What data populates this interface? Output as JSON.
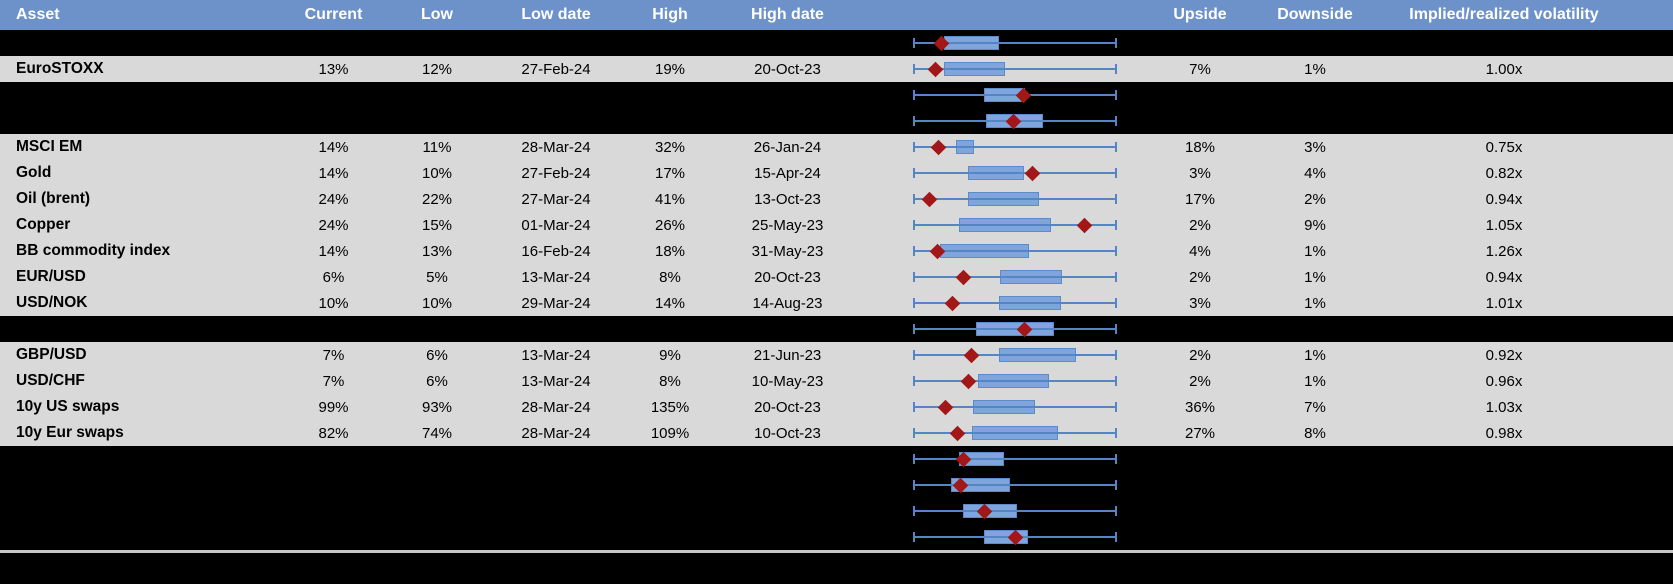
{
  "colors": {
    "header_bg": "#6C92C9",
    "row_bg": "#D9D9D9",
    "hidden_row_bg": "#000000",
    "header_text": "#FFFFFF",
    "data_text": "#000000",
    "whisker": "#5486C5",
    "box_fill": "#80A5DC",
    "box_border": "#5B8BC8",
    "diamond": "#A21717",
    "separator": "#C8C8C8",
    "footer_bg": "#000000"
  },
  "header": {
    "asset": "Asset",
    "current": "Current",
    "low": "Low",
    "low_date": "Low date",
    "high": "High",
    "high_date": "High date",
    "upside": "Upside",
    "downside": "Downside",
    "implied": "Implied/realized volatility"
  },
  "rows": [
    {
      "type": "hidden"
    },
    {
      "type": "data",
      "asset": "EuroSTOXX",
      "current": "13%",
      "low": "12%",
      "low_date": "27-Feb-24",
      "high": "19%",
      "high_date": "20-Oct-23",
      "upside": "7%",
      "downside": "1%",
      "implied_realized": "1.00x"
    },
    {
      "type": "hidden"
    },
    {
      "type": "hidden"
    },
    {
      "type": "data",
      "asset": "MSCI EM",
      "current": "14%",
      "low": "11%",
      "low_date": "28-Mar-24",
      "high": "32%",
      "high_date": "26-Jan-24",
      "upside": "18%",
      "downside": "3%",
      "implied_realized": "0.75x"
    },
    {
      "type": "data",
      "asset": "Gold",
      "current": "14%",
      "low": "10%",
      "low_date": "27-Feb-24",
      "high": "17%",
      "high_date": "15-Apr-24",
      "upside": "3%",
      "downside": "4%",
      "implied_realized": "0.82x"
    },
    {
      "type": "data",
      "asset": "Oil (brent)",
      "current": "24%",
      "low": "22%",
      "low_date": "27-Mar-24",
      "high": "41%",
      "high_date": "13-Oct-23",
      "upside": "17%",
      "downside": "2%",
      "implied_realized": "0.94x"
    },
    {
      "type": "data",
      "asset": "Copper",
      "current": "24%",
      "low": "15%",
      "low_date": "01-Mar-24",
      "high": "26%",
      "high_date": "25-May-23",
      "upside": "2%",
      "downside": "9%",
      "implied_realized": "1.05x"
    },
    {
      "type": "data",
      "asset": "BB commodity index",
      "current": "14%",
      "low": "13%",
      "low_date": "16-Feb-24",
      "high": "18%",
      "high_date": "31-May-23",
      "upside": "4%",
      "downside": "1%",
      "implied_realized": "1.26x"
    },
    {
      "type": "data",
      "asset": "EUR/USD",
      "current": "6%",
      "low": "5%",
      "low_date": "13-Mar-24",
      "high": "8%",
      "high_date": "20-Oct-23",
      "upside": "2%",
      "downside": "1%",
      "implied_realized": "0.94x"
    },
    {
      "type": "data",
      "asset": "USD/NOK",
      "current": "10%",
      "low": "10%",
      "low_date": "29-Mar-24",
      "high": "14%",
      "high_date": "14-Aug-23",
      "upside": "3%",
      "downside": "1%",
      "implied_realized": "1.01x"
    },
    {
      "type": "hidden"
    },
    {
      "type": "data",
      "asset": "GBP/USD",
      "current": "7%",
      "low": "6%",
      "low_date": "13-Mar-24",
      "high": "9%",
      "high_date": "21-Jun-23",
      "upside": "2%",
      "downside": "1%",
      "implied_realized": "0.92x"
    },
    {
      "type": "data",
      "asset": "USD/CHF",
      "current": "7%",
      "low": "6%",
      "low_date": "13-Mar-24",
      "high": "8%",
      "high_date": "10-May-23",
      "upside": "2%",
      "downside": "1%",
      "implied_realized": "0.96x"
    },
    {
      "type": "data",
      "asset": "10y US swaps",
      "current": "99%",
      "low": "93%",
      "low_date": "28-Mar-24",
      "high": "135%",
      "high_date": "20-Oct-23",
      "upside": "36%",
      "downside": "7%",
      "implied_realized": "1.03x"
    },
    {
      "type": "data",
      "asset": "10y Eur swaps",
      "current": "82%",
      "low": "74%",
      "low_date": "28-Mar-24",
      "high": "109%",
      "high_date": "10-Oct-23",
      "upside": "27%",
      "downside": "8%",
      "implied_realized": "0.98x"
    },
    {
      "type": "hidden"
    },
    {
      "type": "hidden"
    },
    {
      "type": "hidden"
    },
    {
      "type": "hidden"
    }
  ],
  "chart_data": {
    "type": "boxplot",
    "orientation": "horizontal",
    "note": "One mini box-plot per table row; whisker spans full normalized range [0,1] of each row; box = [low,high] fraction of span; marker = red diamond position fraction. Hidden rows have empty labels.",
    "whisker_range": [
      0,
      1
    ],
    "rows": [
      {
        "label": "",
        "box": [
          0.15,
          0.42
        ],
        "marker": 0.14
      },
      {
        "label": "EuroSTOXX",
        "box": [
          0.15,
          0.45
        ],
        "marker": 0.11
      },
      {
        "label": "",
        "box": [
          0.35,
          0.55
        ],
        "marker": 0.54
      },
      {
        "label": "",
        "box": [
          0.36,
          0.64
        ],
        "marker": 0.49
      },
      {
        "label": "MSCI EM",
        "box": [
          0.21,
          0.3
        ],
        "marker": 0.125
      },
      {
        "label": "Gold",
        "box": [
          0.27,
          0.545
        ],
        "marker": 0.585
      },
      {
        "label": "Oil (brent)",
        "box": [
          0.27,
          0.62
        ],
        "marker": 0.08
      },
      {
        "label": "Copper",
        "box": [
          0.225,
          0.675
        ],
        "marker": 0.84
      },
      {
        "label": "BB commodity index",
        "box": [
          0.13,
          0.57
        ],
        "marker": 0.12
      },
      {
        "label": "EUR/USD",
        "box": [
          0.425,
          0.73
        ],
        "marker": 0.245
      },
      {
        "label": "USD/NOK",
        "box": [
          0.42,
          0.725
        ],
        "marker": 0.195
      },
      {
        "label": "",
        "box": [
          0.31,
          0.69
        ],
        "marker": 0.545
      },
      {
        "label": "GBP/USD",
        "box": [
          0.42,
          0.8
        ],
        "marker": 0.285
      },
      {
        "label": "USD/CHF",
        "box": [
          0.32,
          0.665
        ],
        "marker": 0.27
      },
      {
        "label": "10y US swaps",
        "box": [
          0.295,
          0.6
        ],
        "marker": 0.16
      },
      {
        "label": "10y Eur swaps",
        "box": [
          0.29,
          0.71
        ],
        "marker": 0.22
      },
      {
        "label": "",
        "box": [
          0.225,
          0.445
        ],
        "marker": 0.245
      },
      {
        "label": "",
        "box": [
          0.185,
          0.475
        ],
        "marker": 0.235
      },
      {
        "label": "",
        "box": [
          0.245,
          0.51
        ],
        "marker": 0.35
      },
      {
        "label": "",
        "box": [
          0.35,
          0.565
        ],
        "marker": 0.5
      }
    ]
  }
}
